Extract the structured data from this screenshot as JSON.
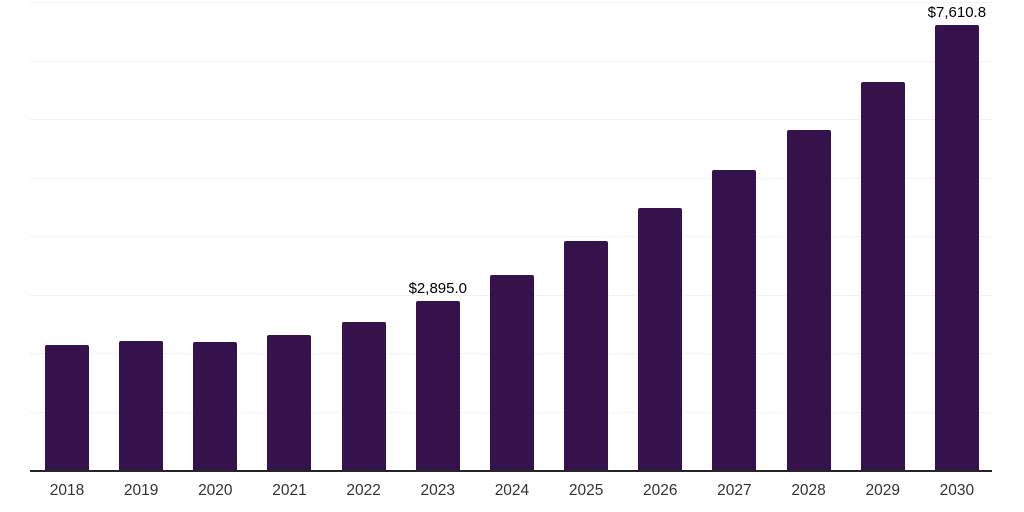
{
  "page": {
    "background": "#FFFFFF"
  },
  "chart_data": {
    "type": "bar",
    "title": "",
    "xlabel": "",
    "ylabel": "",
    "categories": [
      "2018",
      "2019",
      "2020",
      "2021",
      "2022",
      "2023",
      "2024",
      "2025",
      "2026",
      "2027",
      "2028",
      "2029",
      "2030"
    ],
    "values": [
      2145,
      2200,
      2185,
      2310,
      2530,
      2895.0,
      3340,
      3920,
      4485,
      5125,
      5815,
      6625,
      7610.8
    ],
    "data_labels": [
      "",
      "",
      "",
      "",
      "",
      "$2,895.0",
      "",
      "",
      "",
      "",
      "",
      "",
      "$7,610.8"
    ],
    "labeled_points": [
      {
        "category": "2023",
        "label": "$2,895.0",
        "value": 2895.0
      },
      {
        "category": "2030",
        "label": "$7,610.8",
        "value": 7610.8
      }
    ],
    "ylim": [
      0,
      8000
    ],
    "gridline_step": 1000,
    "grid": "horizontal-only",
    "y_tick_labels_shown": false,
    "legend": "none",
    "colors": {
      "bar": "#36124D",
      "gridline": "#F2F2F2",
      "axis_line": "#262626",
      "data_label_text": "#000000",
      "x_tick_text": "#333333",
      "background": "#FFFFFF"
    }
  }
}
